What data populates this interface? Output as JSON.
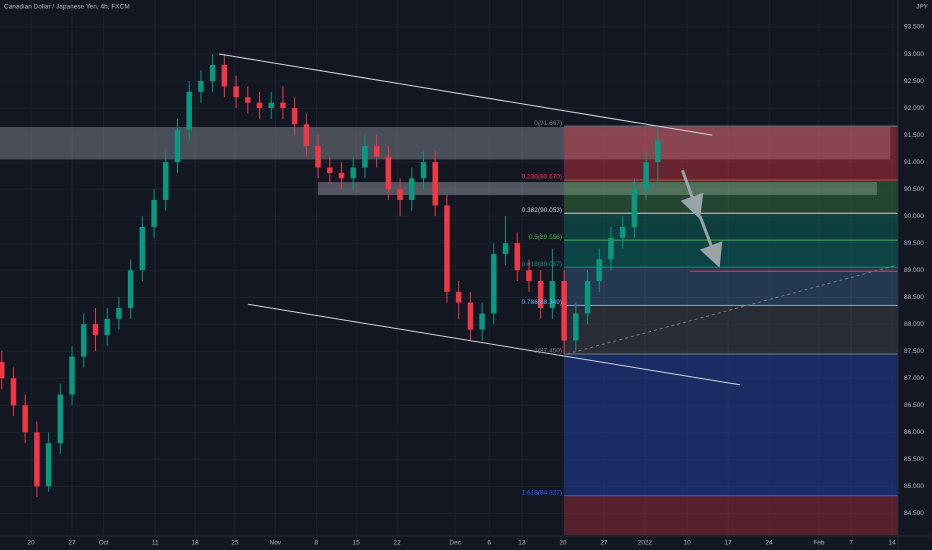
{
  "chart_data": {
    "type": "candlestick",
    "title": "Canadian Dollar / Japanese Yen, 4h, FXCM",
    "currency": "JPY",
    "up_color": "#089981",
    "down_color": "#f23645",
    "grid": true,
    "xlim": [
      -5.3,
      148
    ],
    "ylim": [
      84.1,
      94.0
    ],
    "xticks": [
      {
        "value": 0,
        "label": "20"
      },
      {
        "value": 7,
        "label": "27"
      },
      {
        "value": 12.4,
        "label": "Oct"
      },
      {
        "value": 21.2,
        "label": "11"
      },
      {
        "value": 28,
        "label": "18"
      },
      {
        "value": 34.8,
        "label": "25"
      },
      {
        "value": 41.7,
        "label": "Nov"
      },
      {
        "value": 48.7,
        "label": "8"
      },
      {
        "value": 55.5,
        "label": "15"
      },
      {
        "value": 62.5,
        "label": "22"
      },
      {
        "value": 72.4,
        "label": "Dec"
      },
      {
        "value": 78.2,
        "label": "6"
      },
      {
        "value": 83.8,
        "label": "13"
      },
      {
        "value": 90.8,
        "label": "20"
      },
      {
        "value": 97.8,
        "label": "27"
      },
      {
        "value": 104.8,
        "label": "2022"
      },
      {
        "value": 112,
        "label": "10"
      },
      {
        "value": 119,
        "label": "17"
      },
      {
        "value": 126,
        "label": "24"
      },
      {
        "value": 134.5,
        "label": "Feb"
      },
      {
        "value": 140,
        "label": "7"
      },
      {
        "value": 147,
        "label": "14"
      }
    ],
    "yticks": [
      {
        "value": 84.5,
        "label": "84.500"
      },
      {
        "value": 85,
        "label": "85.000"
      },
      {
        "value": 85.5,
        "label": "85.500"
      },
      {
        "value": 86,
        "label": "86.000"
      },
      {
        "value": 86.5,
        "label": "86.500"
      },
      {
        "value": 87,
        "label": "87.000"
      },
      {
        "value": 87.5,
        "label": "87.500"
      },
      {
        "value": 88,
        "label": "88.000"
      },
      {
        "value": 88.5,
        "label": "88.500"
      },
      {
        "value": 89,
        "label": "89.000"
      },
      {
        "value": 89.5,
        "label": "89.500"
      },
      {
        "value": 90,
        "label": "90.000"
      },
      {
        "value": 90.5,
        "label": "90.500"
      },
      {
        "value": 91,
        "label": "91.000"
      },
      {
        "value": 91.5,
        "label": "91.500"
      },
      {
        "value": 92,
        "label": "92.000"
      },
      {
        "value": 92.5,
        "label": "92.500"
      },
      {
        "value": 93,
        "label": "93.000"
      },
      {
        "value": 93.5,
        "label": "93.500"
      }
    ],
    "candles": {
      "x": [
        -5,
        -3,
        -1,
        1,
        3,
        5,
        7,
        9,
        11,
        13,
        15,
        17,
        19,
        21,
        23,
        25,
        27,
        29,
        31,
        33,
        35,
        37,
        39,
        41,
        43,
        45,
        47,
        49,
        51,
        53,
        55,
        57,
        59,
        61,
        63,
        65,
        67,
        69,
        71,
        73,
        75,
        77,
        79,
        81,
        83,
        85,
        87,
        89,
        91,
        93,
        95,
        97,
        99,
        101,
        103,
        105,
        107
      ],
      "open": [
        87.3,
        87.0,
        86.5,
        86.0,
        85.0,
        85.8,
        86.7,
        87.4,
        88.0,
        87.8,
        88.1,
        88.3,
        89.0,
        89.8,
        90.3,
        91.0,
        91.6,
        92.3,
        92.5,
        92.8,
        92.4,
        92.2,
        92.1,
        92.0,
        92.1,
        92.0,
        91.7,
        91.3,
        90.9,
        90.8,
        90.7,
        90.9,
        91.3,
        91.1,
        90.5,
        90.3,
        90.7,
        91.0,
        90.2,
        88.6,
        88.4,
        87.9,
        88.2,
        89.3,
        89.5,
        89.0,
        88.8,
        88.3,
        88.8,
        87.7,
        88.2,
        88.8,
        89.2,
        89.6,
        89.8,
        90.5,
        91.0
      ],
      "high": [
        87.5,
        87.2,
        86.7,
        86.2,
        86.0,
        86.9,
        87.6,
        88.2,
        88.3,
        88.3,
        88.5,
        89.2,
        90.0,
        90.5,
        91.2,
        91.8,
        92.5,
        92.7,
        93.0,
        93.0,
        92.6,
        92.4,
        92.3,
        92.3,
        92.4,
        92.2,
        91.9,
        91.5,
        91.1,
        91.0,
        91.1,
        91.5,
        91.5,
        91.3,
        90.7,
        90.9,
        91.2,
        91.2,
        90.4,
        88.8,
        88.6,
        88.4,
        89.5,
        90.0,
        89.7,
        89.2,
        89.0,
        89.4,
        89.0,
        88.4,
        89.0,
        89.4,
        89.8,
        90.0,
        90.7,
        91.2,
        91.65
      ],
      "low": [
        86.8,
        86.3,
        85.8,
        84.8,
        84.9,
        85.6,
        86.5,
        87.2,
        87.5,
        87.6,
        87.9,
        88.1,
        88.8,
        89.6,
        90.1,
        90.8,
        91.4,
        92.1,
        92.3,
        92.2,
        92.0,
        91.9,
        91.8,
        91.8,
        91.8,
        91.5,
        91.1,
        90.7,
        90.6,
        90.5,
        90.5,
        90.7,
        90.9,
        90.3,
        90.0,
        90.1,
        90.5,
        90.0,
        88.4,
        88.1,
        87.7,
        87.7,
        88.0,
        89.1,
        88.8,
        88.6,
        88.1,
        88.1,
        87.45,
        87.5,
        88.0,
        88.6,
        89.0,
        89.4,
        89.6,
        90.3,
        90.6
      ],
      "close": [
        87.0,
        86.5,
        86.0,
        85.0,
        85.8,
        86.7,
        87.4,
        88.0,
        87.8,
        88.1,
        88.3,
        89.0,
        89.8,
        90.3,
        91.0,
        91.6,
        92.3,
        92.5,
        92.8,
        92.4,
        92.2,
        92.1,
        92.0,
        92.1,
        92.0,
        91.7,
        91.3,
        90.9,
        90.8,
        90.7,
        90.9,
        91.3,
        91.1,
        90.5,
        90.3,
        90.7,
        91.0,
        90.2,
        88.6,
        88.4,
        87.9,
        88.2,
        89.3,
        89.5,
        89.0,
        88.8,
        88.3,
        88.8,
        87.7,
        88.2,
        88.8,
        89.2,
        89.6,
        89.8,
        90.5,
        91.0,
        91.4
      ]
    },
    "zones": [
      {
        "x": [
          -5.3,
          146.7
        ],
        "y": [
          91.05,
          91.65
        ],
        "color": "rgba(178,181,190,0.35)"
      },
      {
        "x": [
          49,
          144.4
        ],
        "y": [
          90.39,
          90.63
        ],
        "color": "rgba(178,181,190,0.4)"
      }
    ],
    "fib": {
      "x": [
        91,
        148
      ],
      "levels": [
        {
          "value": 91.667,
          "label": "0(91.667)",
          "color": "#787b86",
          "fill": "rgba(242,54,69,0.38)"
        },
        {
          "value": 90.67,
          "label": "0.236(90.670)",
          "color": "#f23645",
          "fill": "rgba(76,175,80,0.3)"
        },
        {
          "value": 90.053,
          "label": "0.382(90.053)",
          "color": "#d1d4dc",
          "fill": "rgba(8,153,129,0.3)"
        },
        {
          "value": 89.556,
          "label": "0.5(89.556)",
          "color": "#4caf50",
          "fill": "rgba(0,150,136,0.35)"
        },
        {
          "value": 89.057,
          "label": "0.618(89.057)",
          "color": "#089981",
          "fill": "rgba(100,181,246,0.22)"
        },
        {
          "value": 88.349,
          "label": "0.786(88.349)",
          "color": "#64b5f6",
          "fill": "rgba(120,123,134,0.22)"
        },
        {
          "value": 87.45,
          "label": "1(87.450)",
          "color": "#787b86",
          "fill": "rgba(33,72,180,0.45)"
        },
        {
          "value": 84.827,
          "label": "1.618(84.827)",
          "color": "#2962ff",
          "fill": "rgba(242,54,69,0.3)"
        }
      ]
    },
    "trendlines": [
      {
        "x": [
          32.1,
          116.3
        ],
        "y": [
          93.0,
          91.5
        ],
        "color": "#d1d4dc"
      },
      {
        "x": [
          37.0,
          121.0
        ],
        "y": [
          88.37,
          86.88
        ],
        "color": "#d1d4dc"
      },
      {
        "x": [
          91.5,
          148
        ],
        "y": [
          87.45,
          89.1
        ],
        "color": "#787b86",
        "dash": true
      },
      {
        "x": [
          112.5,
          148
        ],
        "y": [
          88.98,
          88.98
        ],
        "color": "#f23645"
      }
    ],
    "arrows": [
      {
        "x": [
          111.2,
          113.7
        ],
        "y": [
          90.85,
          90.1
        ]
      },
      {
        "x": [
          114.2,
          117
        ],
        "y": [
          90.0,
          89.2
        ]
      }
    ]
  }
}
